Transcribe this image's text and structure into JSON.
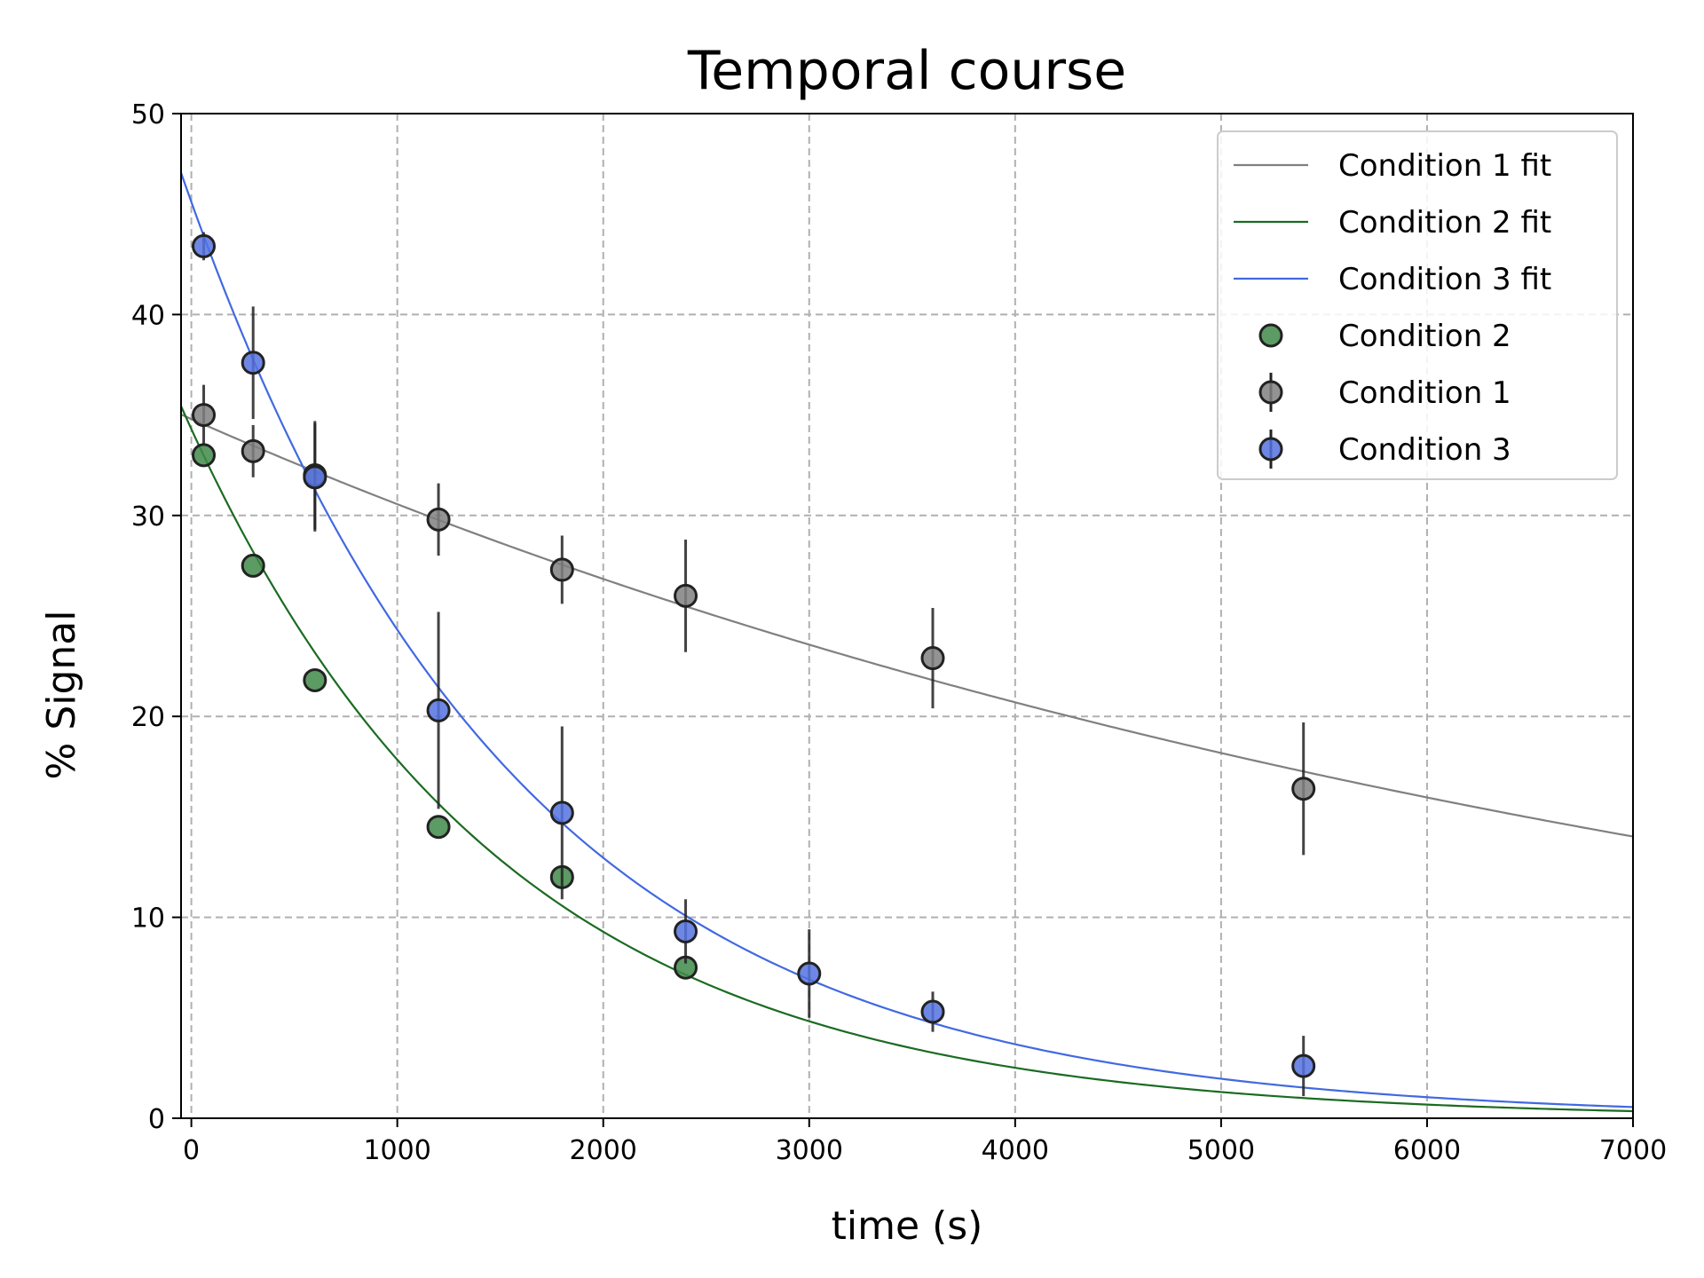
{
  "chart_data": {
    "type": "scatter",
    "title": "Temporal course",
    "xlabel": "time (s)",
    "ylabel": "% Signal",
    "xlim": [
      -50,
      7000
    ],
    "ylim": [
      0,
      50
    ],
    "xticks": [
      0,
      1000,
      2000,
      3000,
      4000,
      5000,
      6000,
      7000
    ],
    "yticks": [
      0,
      10,
      20,
      30,
      40,
      50
    ],
    "xtick_labels": [
      "0",
      "1000",
      "2000",
      "3000",
      "4000",
      "5000",
      "6000",
      "7000"
    ],
    "ytick_labels": [
      "0",
      "10",
      "20",
      "30",
      "40",
      "50"
    ],
    "grid": true,
    "legend_position": "top-right",
    "fits": [
      {
        "name": "Condition 1 fit",
        "color": "#808080",
        "model": "exponential",
        "a": 34.8,
        "tau": 7700
      },
      {
        "name": "Condition 2 fit",
        "color": "#1b6b22",
        "model": "exponential",
        "a": 34.3,
        "tau": 1530
      },
      {
        "name": "Condition 3 fit",
        "color": "#4169e1",
        "model": "exponential",
        "a": 45.6,
        "tau": 1590
      }
    ],
    "series": [
      {
        "name": "Condition 2",
        "color": "#3f8a48",
        "x": [
          60,
          300,
          600,
          1200,
          1800,
          2400
        ],
        "y": [
          33.0,
          27.5,
          21.8,
          14.5,
          12.0,
          7.5
        ],
        "err": [
          0,
          0,
          0,
          0,
          0,
          0
        ]
      },
      {
        "name": "Condition 1",
        "color": "#808080",
        "x": [
          60,
          300,
          600,
          1200,
          1800,
          2400,
          3600,
          5400
        ],
        "y": [
          35.0,
          33.2,
          32.0,
          29.8,
          27.3,
          26.0,
          22.9,
          16.4
        ],
        "err": [
          1.5,
          1.3,
          2.7,
          1.8,
          1.7,
          2.8,
          2.5,
          3.3
        ]
      },
      {
        "name": "Condition 3",
        "color": "#5572e0",
        "x": [
          60,
          300,
          600,
          1200,
          1800,
          2400,
          3000,
          3600,
          5400
        ],
        "y": [
          43.4,
          37.6,
          31.9,
          20.3,
          15.2,
          9.3,
          7.2,
          5.3,
          2.6
        ],
        "err": [
          0.7,
          2.8,
          2.7,
          4.9,
          4.3,
          1.6,
          2.2,
          1.0,
          1.5
        ]
      }
    ]
  }
}
